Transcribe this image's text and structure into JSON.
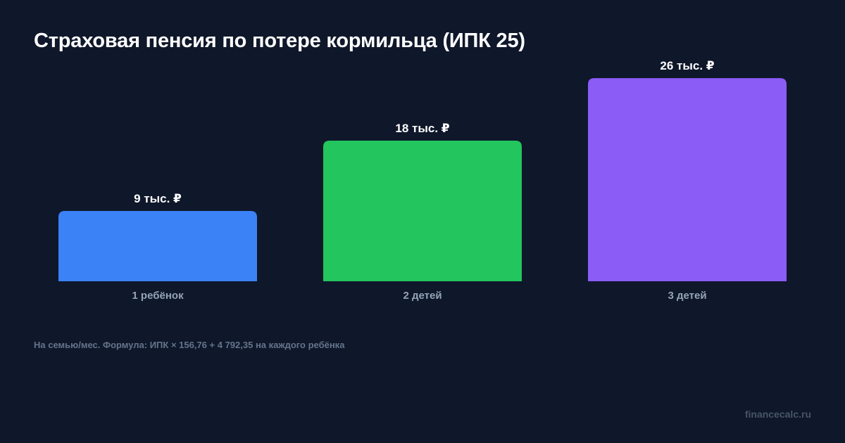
{
  "chart_data": {
    "type": "bar",
    "title": "Страховая пенсия по потере кормильца (ИПК 25)",
    "categories": [
      "1 ребёнок",
      "2 детей",
      "3 детей"
    ],
    "values": [
      9,
      18,
      26
    ],
    "value_labels": [
      "9 тыс. ₽",
      "18 тыс. ₽",
      "26 тыс. ₽"
    ],
    "colors": [
      "#3b82f6",
      "#22c55e",
      "#8b5cf6"
    ],
    "ylim": [
      0,
      27
    ],
    "grid": false,
    "xlabel": "",
    "ylabel": ""
  },
  "footnote": "На семью/мес. Формула: ИПК × 156,76 + 4 792,35 на каждого ребёнка",
  "watermark": "financecalc.ru"
}
